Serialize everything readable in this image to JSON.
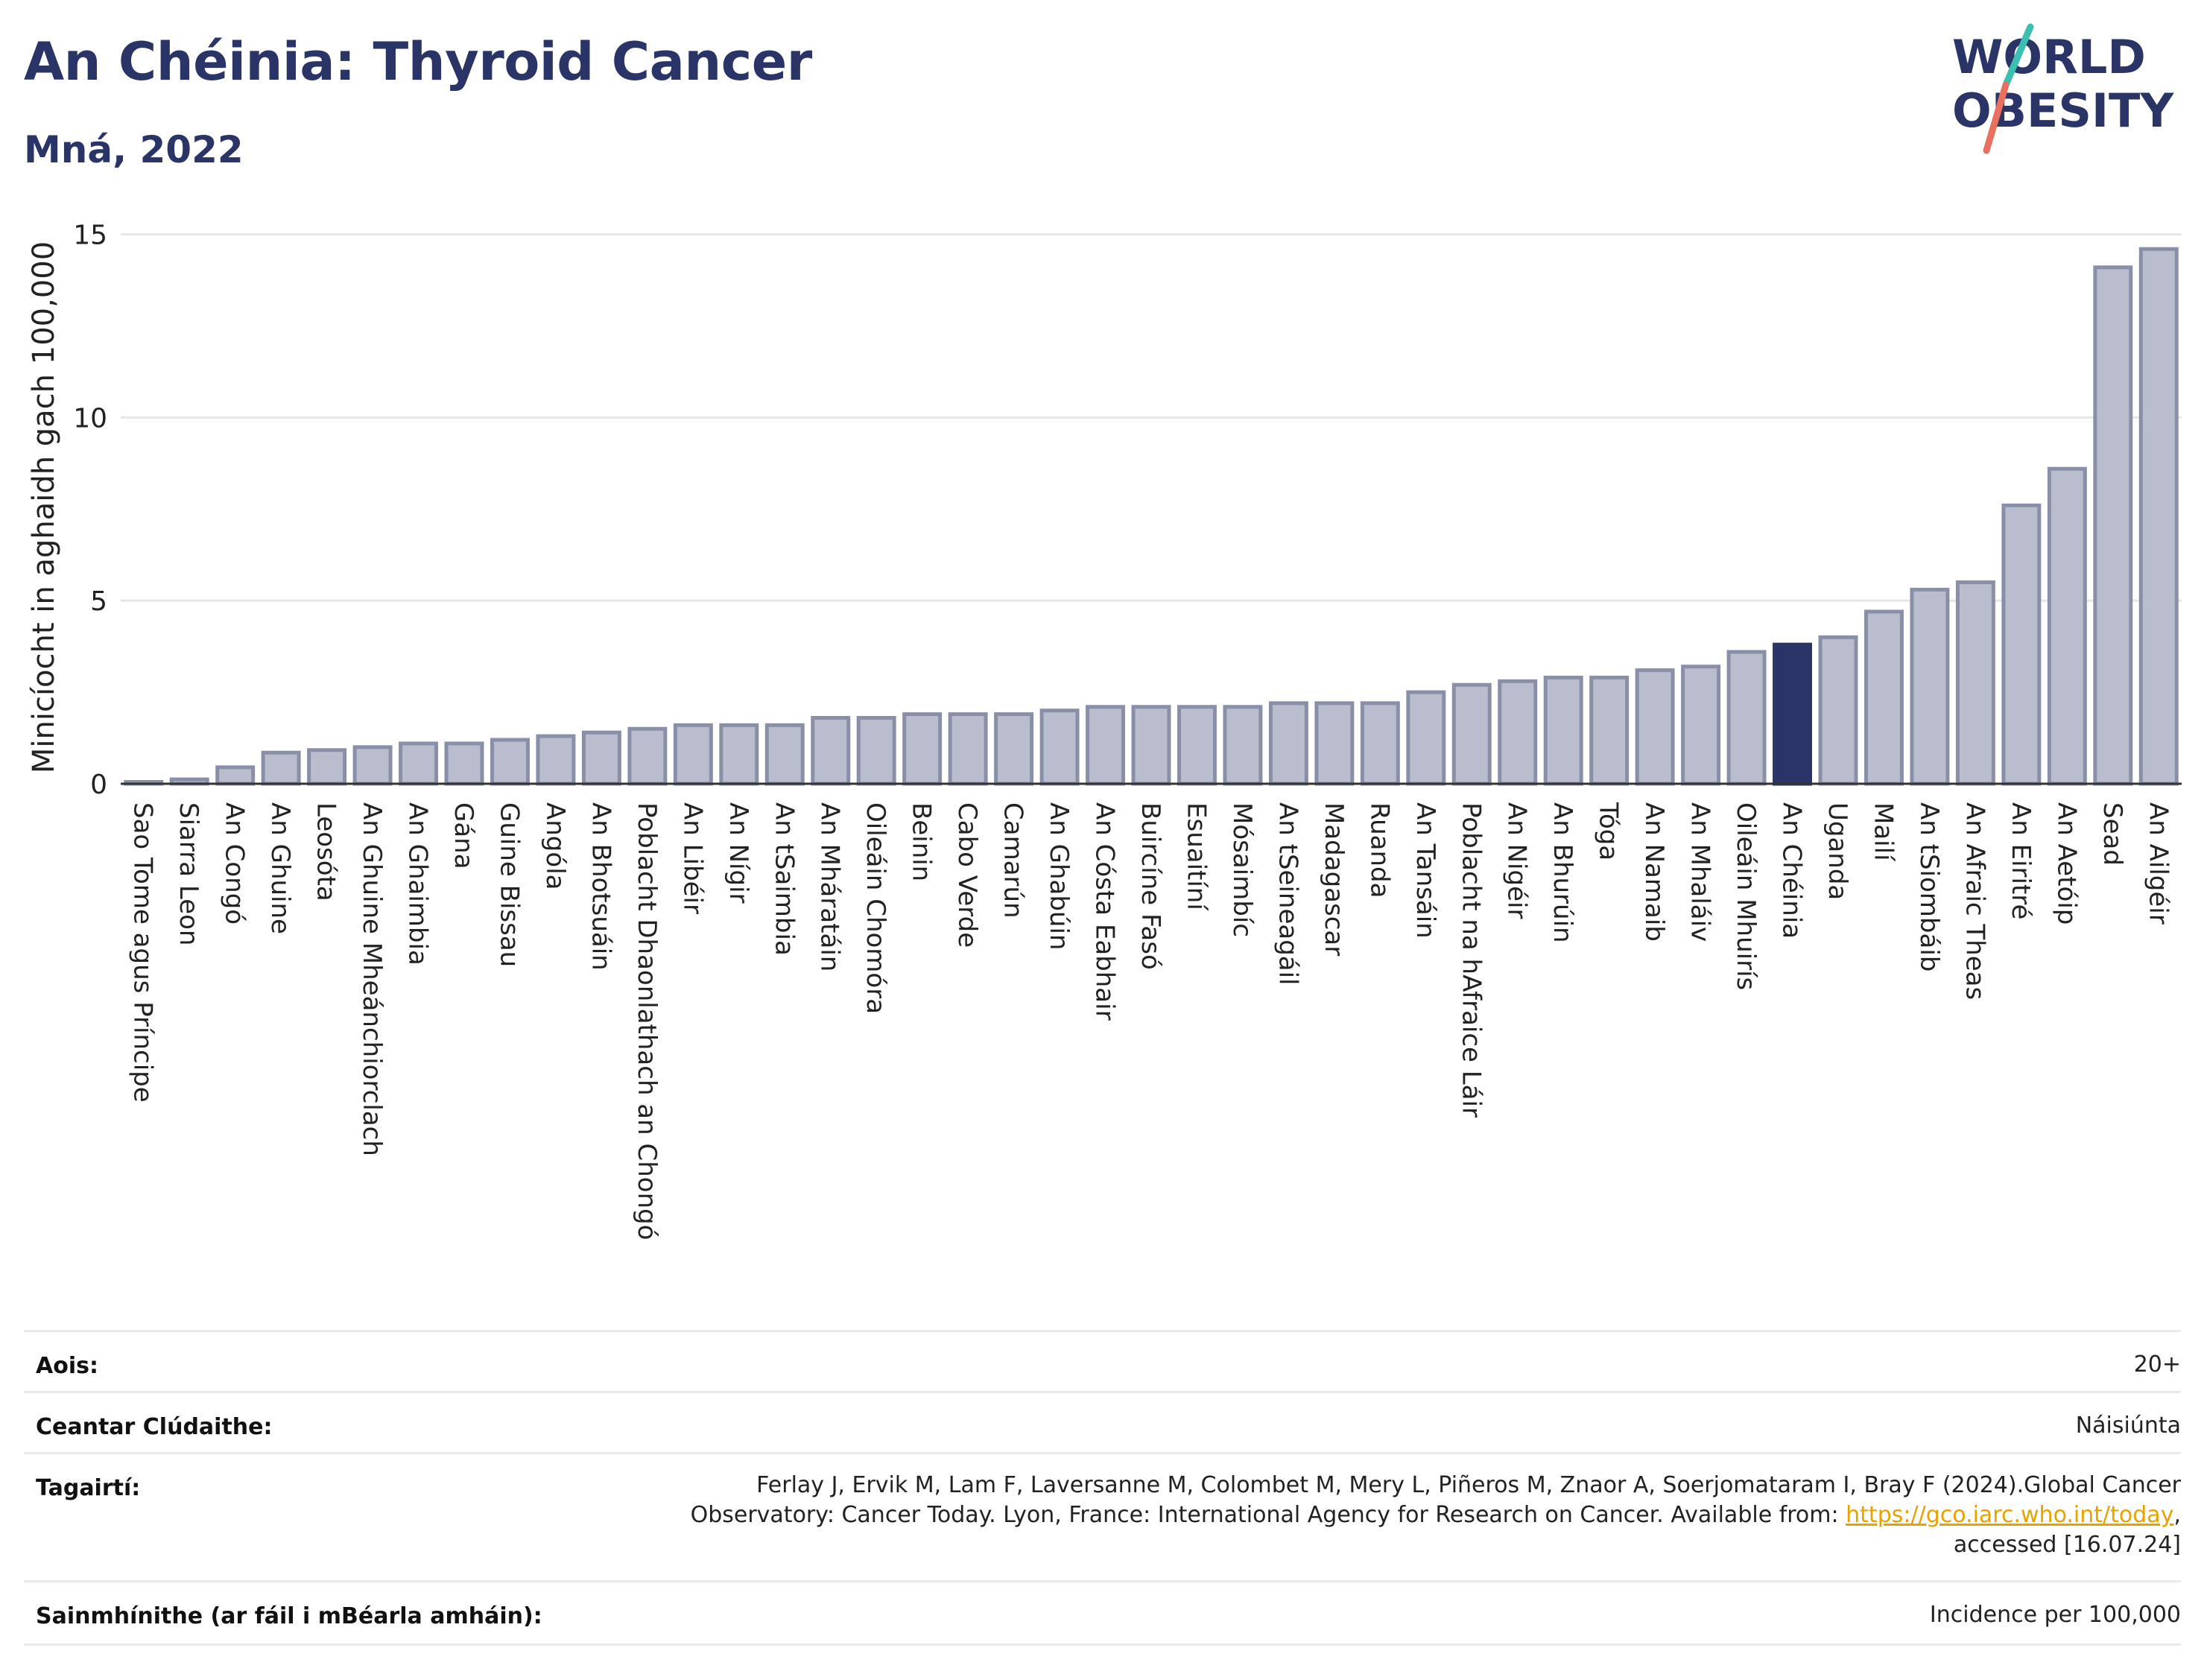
{
  "header": {
    "title": "An Chéinia: Thyroid Cancer",
    "subtitle": "Mná, 2022"
  },
  "logo": {
    "line1": "WORLD",
    "line2": "OBESITY",
    "colors": {
      "text": "#2b3467",
      "slash_top": "#3bbfb0",
      "slash_bottom": "#e8705f"
    }
  },
  "chart_data": {
    "type": "bar",
    "ylabel": "Minicíocht in aghaidh gach 100,000",
    "ylim": [
      0,
      15.5
    ],
    "yticks": [
      0,
      5,
      10,
      15
    ],
    "grid": true,
    "highlight": "An Chéinia",
    "colors": {
      "bar": "#b9bdce",
      "bar_edge": "#8a8fa8",
      "highlight": "#2b3467"
    },
    "categories": [
      "Sao Tome agus Príncipe",
      "Siarra Leon",
      "An Congó",
      "An Ghuine",
      "Leosóta",
      "An Ghuine Mheánchiorclach",
      "An Ghaimbia",
      "Gána",
      "Guine Bissau",
      "Angóla",
      "An Bhotsuáin",
      "Poblacht Dhaonlathach an Chongó",
      "An Libéir",
      "An Nígir",
      "An tSaimbia",
      "An Mháratáin",
      "Oileáin Chomóra",
      "Beinin",
      "Cabo Verde",
      "Camarún",
      "An Ghabúin",
      "An Cósta Eabhair",
      "Buircíne Fasó",
      "Esuaitíní",
      "Mósaimbíc",
      "An tSeineagáil",
      "Madagascar",
      "Ruanda",
      "An Tansáin",
      "Poblacht na hAfraice Láir",
      "An Nigéir",
      "An Bhurúin",
      "Tóga",
      "An Namaib",
      "An Mhaláiv",
      "Oileáin Mhuirís",
      "An Chéinia",
      "Uganda",
      "Mailí",
      "An tSiombáib",
      "An Afraic Theas",
      "An Eiritré",
      "An Aetóip",
      "Sead",
      "An Ailgéir"
    ],
    "values": [
      0.05,
      0.12,
      0.45,
      0.85,
      0.92,
      1.0,
      1.1,
      1.1,
      1.2,
      1.3,
      1.4,
      1.5,
      1.6,
      1.6,
      1.6,
      1.8,
      1.8,
      1.9,
      1.9,
      1.9,
      2.0,
      2.1,
      2.1,
      2.1,
      2.1,
      2.2,
      2.2,
      2.2,
      2.5,
      2.7,
      2.8,
      2.9,
      2.9,
      3.1,
      3.2,
      3.6,
      3.8,
      4.0,
      4.7,
      5.3,
      5.5,
      7.6,
      8.6,
      14.1,
      14.6
    ]
  },
  "meta": {
    "age_label": "Aois:",
    "age_value": "20+",
    "coverage_label": "Ceantar Clúdaithe:",
    "coverage_value": "Náisiúnta",
    "refs_label": "Tagairtí:",
    "refs_line1": "Ferlay J, Ervik M, Lam F, Laversanne M, Colombet M, Mery L, Piñeros M, Znaor A, Soerjomataram I, Bray F (2024).Global Cancer",
    "refs_line2_pre": "Observatory: Cancer Today. Lyon, France: International Agency for Research on Cancer. Available from: ",
    "refs_link": "https://gco.iarc.who.int/today",
    "refs_line2_post": ",",
    "refs_line3": "accessed [16.07.24]",
    "defs_label": "Sainmhínithe (ar fáil i mBéarla amháin):",
    "defs_value": "Incidence per 100,000"
  }
}
